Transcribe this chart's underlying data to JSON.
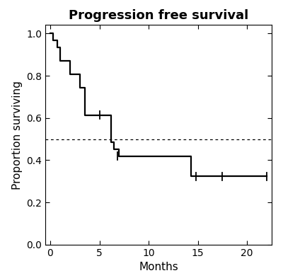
{
  "title": "Progression free survival",
  "xlabel": "Months",
  "ylabel": "Proportion surviving",
  "xlim": [
    -0.5,
    22.5
  ],
  "ylim": [
    0.0,
    1.04
  ],
  "xticks": [
    0,
    5,
    10,
    15,
    20
  ],
  "yticks": [
    0.0,
    0.2,
    0.4,
    0.6,
    0.8,
    1.0
  ],
  "median_line_y": 0.5,
  "background_color": "#ffffff",
  "line_color": "#000000",
  "title_fontsize": 13,
  "axis_label_fontsize": 11,
  "tick_fontsize": 10,
  "km_times": [
    0,
    0.3,
    0.7,
    1.0,
    2.0,
    3.0,
    3.5,
    5.0,
    6.0,
    6.2,
    6.5,
    7.0,
    14.0,
    14.3,
    22.0
  ],
  "km_surv": [
    1.0,
    0.968,
    0.935,
    0.871,
    0.806,
    0.742,
    0.613,
    0.613,
    0.613,
    0.484,
    0.452,
    0.419,
    0.419,
    0.323,
    0.323
  ],
  "censor_marks": [
    [
      5.0,
      0.613
    ],
    [
      6.8,
      0.419
    ],
    [
      14.8,
      0.323
    ],
    [
      17.5,
      0.323
    ],
    [
      22.0,
      0.323
    ]
  ]
}
